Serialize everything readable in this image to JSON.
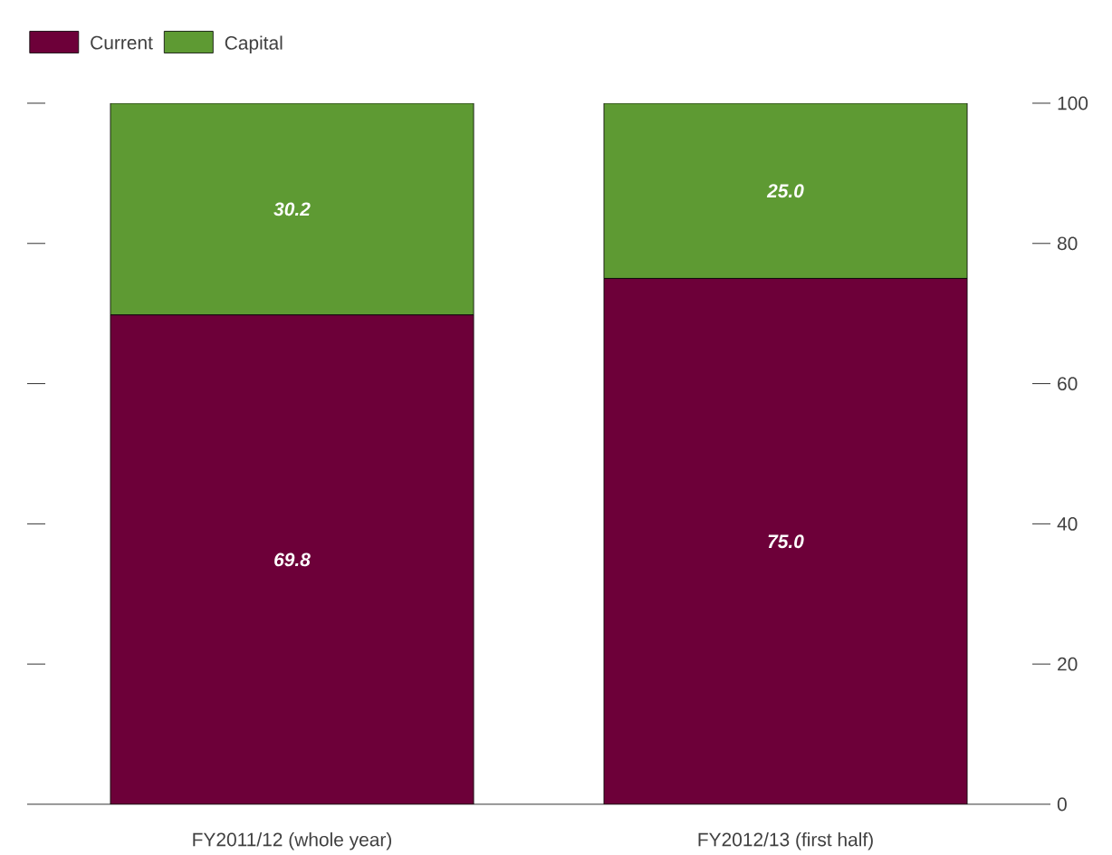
{
  "chart_data": {
    "type": "bar",
    "stacked": true,
    "categories": [
      "FY2011/12 (whole year)",
      "FY2012/13 (first half)"
    ],
    "series": [
      {
        "name": "Current",
        "color": "#6d0039",
        "values": [
          69.8,
          75.0
        ],
        "value_labels": [
          "69.8",
          "75.0"
        ]
      },
      {
        "name": "Capital",
        "color": "#5e9a33",
        "values": [
          30.2,
          25.0
        ],
        "value_labels": [
          "30.2",
          "25.0"
        ]
      }
    ],
    "ylim": [
      0,
      100
    ],
    "yticks": [
      0,
      20,
      40,
      60,
      80,
      100
    ],
    "legend": "top left",
    "grid": false
  }
}
